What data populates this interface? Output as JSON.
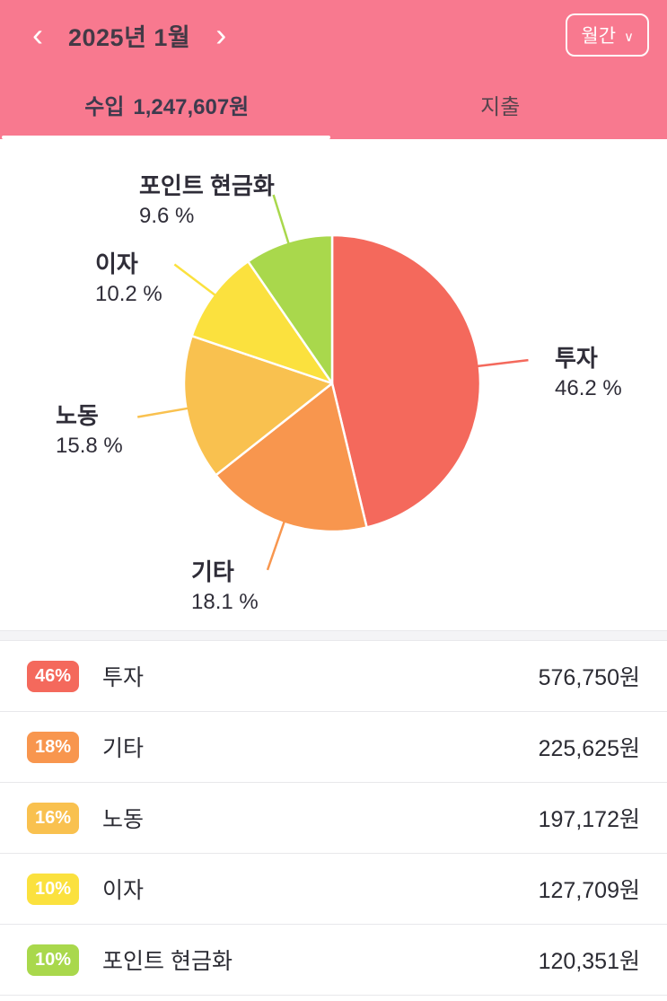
{
  "header": {
    "prev": "‹",
    "next": "›",
    "title": "2025년 1월",
    "period_label": "월간",
    "period_chevron": "∨",
    "bg_color": "#f8798f"
  },
  "tabs": {
    "income_label": "수입",
    "income_amount": "1,247,607원",
    "expense_label": "지출",
    "active_tab": "income"
  },
  "chart_data": {
    "type": "pie",
    "title": "",
    "unit": "%",
    "start": "top, clockwise",
    "slices": [
      {
        "name": "투자",
        "percent": 46.2,
        "percent_label": "46.2 %",
        "badge_label": "46%",
        "amount": "576,750원",
        "color": "#f4695c"
      },
      {
        "name": "기타",
        "percent": 18.1,
        "percent_label": "18.1 %",
        "badge_label": "18%",
        "amount": "225,625원",
        "color": "#f8964e"
      },
      {
        "name": "노동",
        "percent": 15.8,
        "percent_label": "15.8 %",
        "badge_label": "16%",
        "amount": "197,172원",
        "color": "#f9c14f"
      },
      {
        "name": "이자",
        "percent": 10.2,
        "percent_label": "10.2 %",
        "badge_label": "10%",
        "amount": "127,709원",
        "color": "#fbe13e"
      },
      {
        "name": "포인트 현금화",
        "percent": 9.6,
        "percent_label": "9.6 %",
        "badge_label": "10%",
        "amount": "120,351원",
        "color": "#a9d84c"
      }
    ]
  }
}
